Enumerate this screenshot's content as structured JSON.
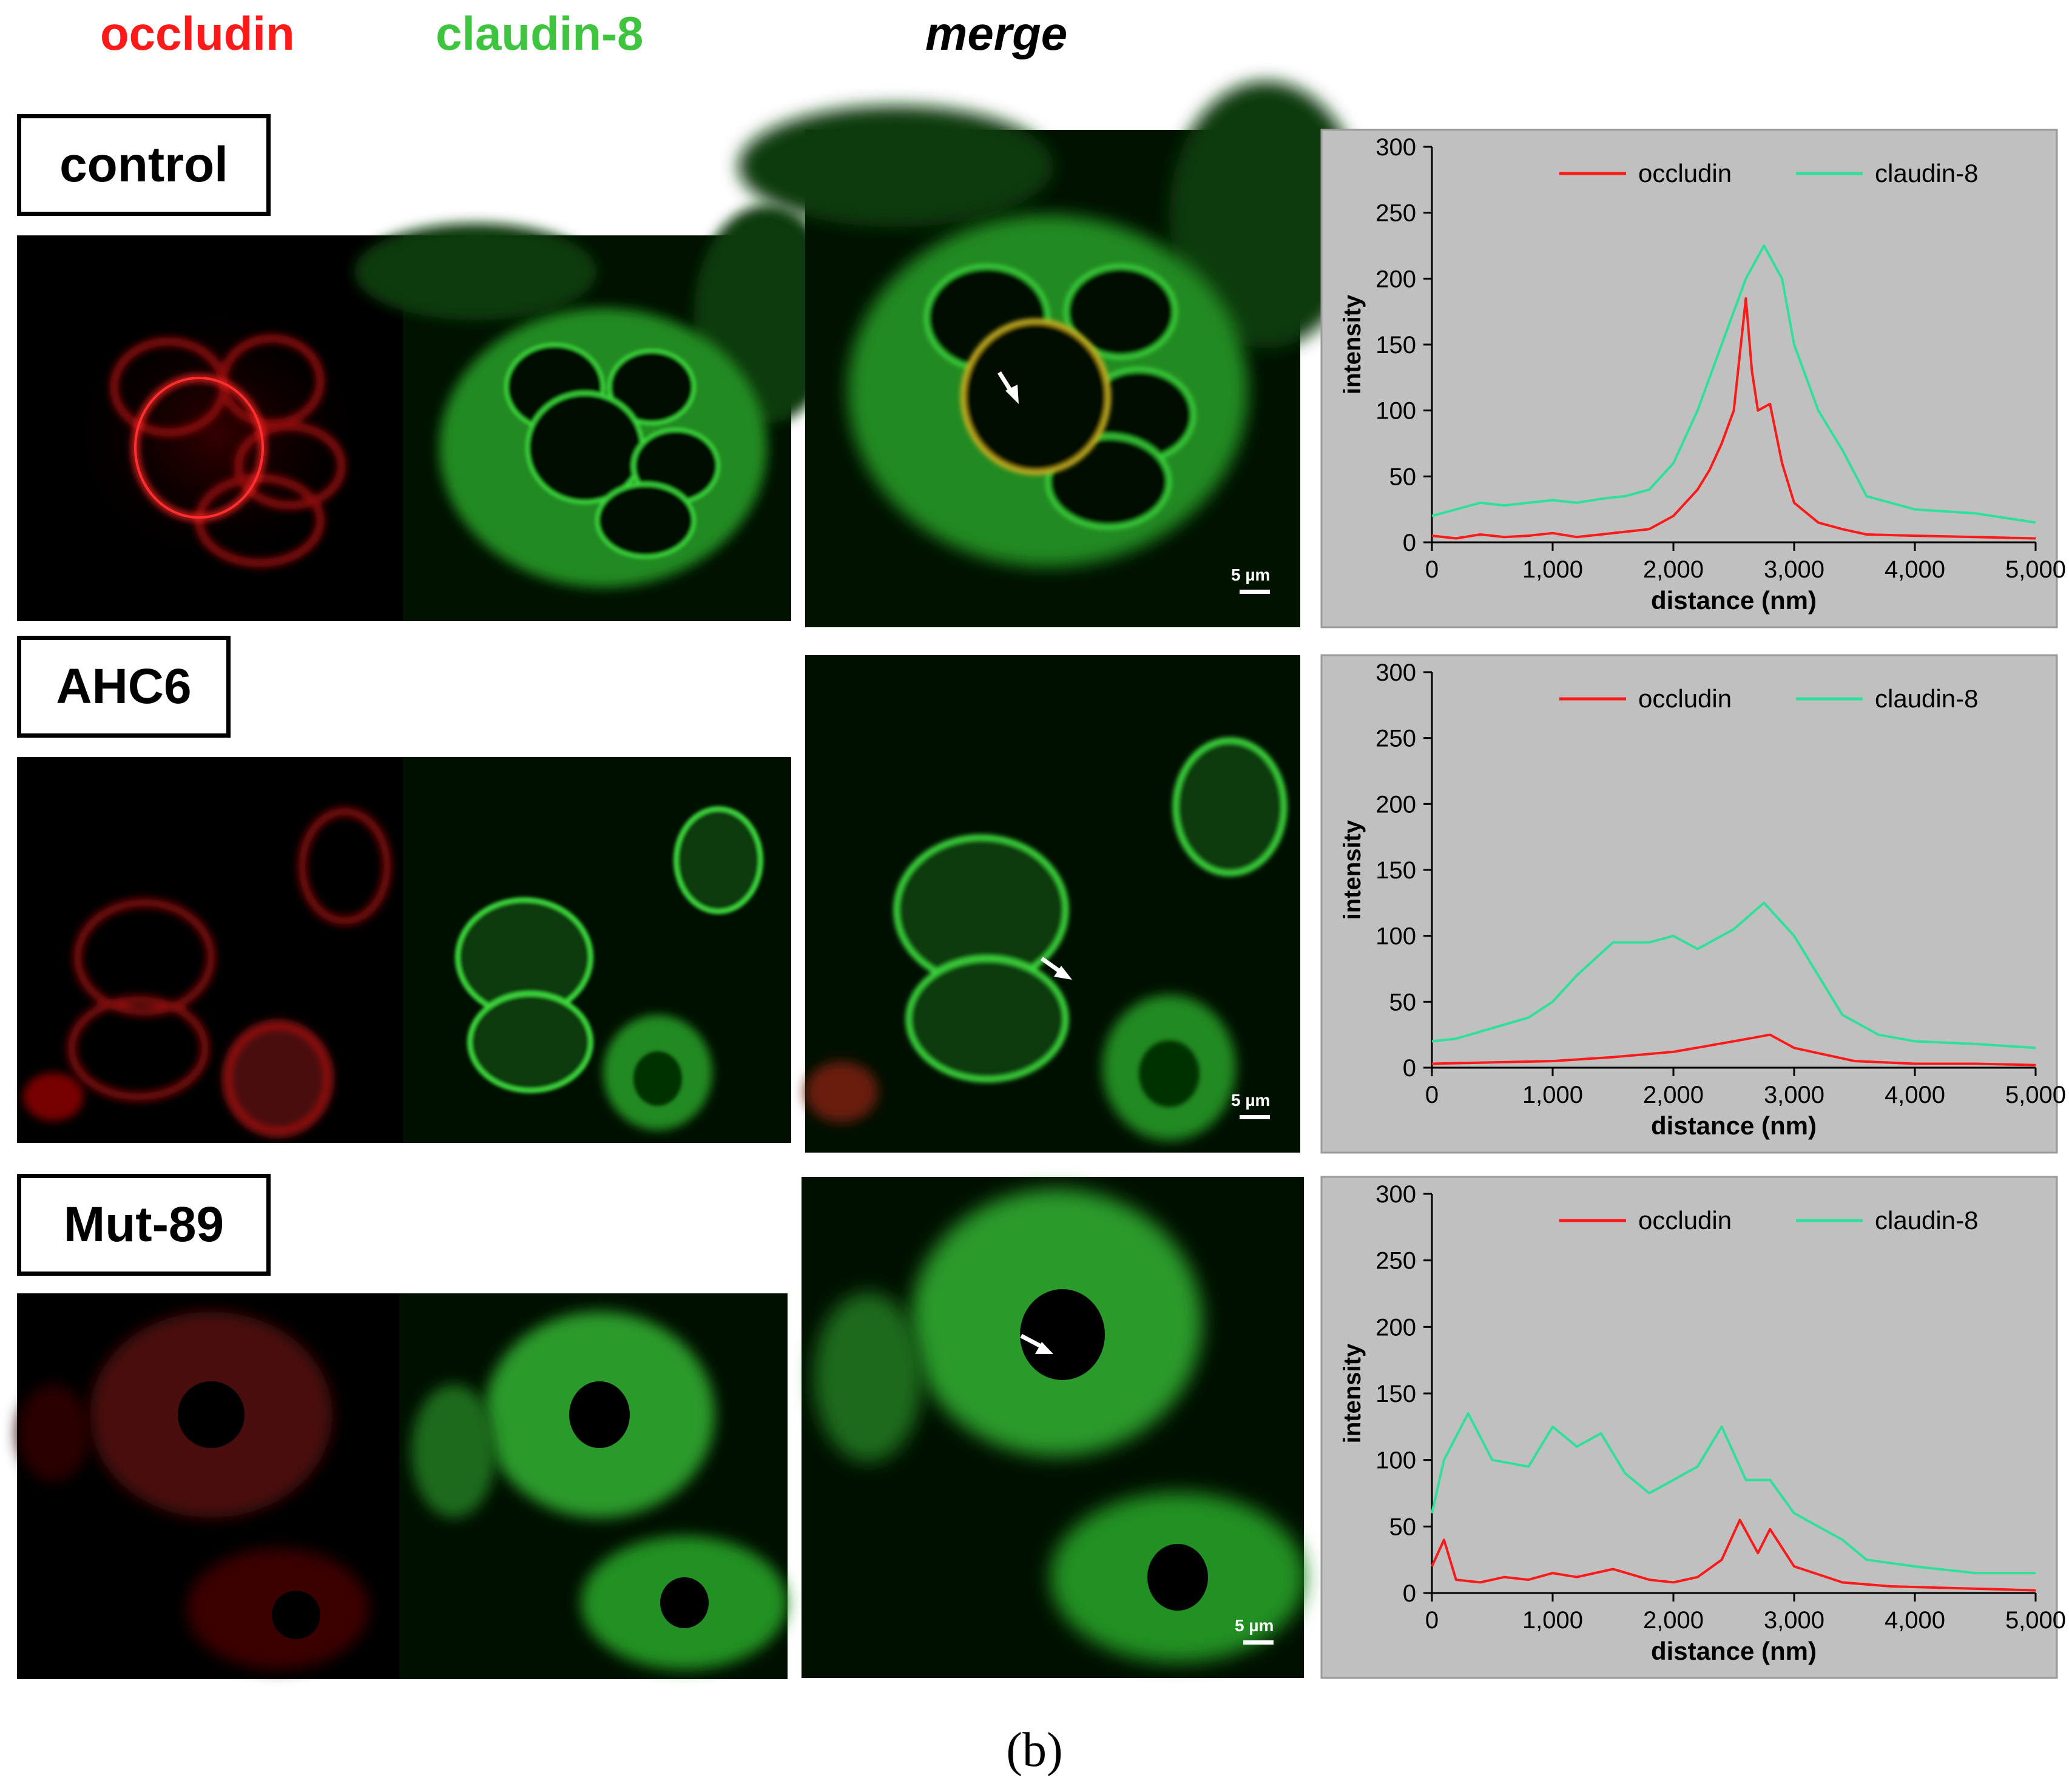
{
  "headers": {
    "occludin": "occludin",
    "claudin": "claudin-8",
    "merge": "merge"
  },
  "rows": [
    {
      "label": "control"
    },
    {
      "label": "AHC6"
    },
    {
      "label": "Mut-89"
    }
  ],
  "scale_bar": "5 µm",
  "caption": "(b)",
  "chart_data": [
    {
      "type": "line",
      "xlabel": "distance (nm)",
      "ylabel": "intensity",
      "xlim": [
        0,
        5000
      ],
      "ylim": [
        0,
        300
      ],
      "xticks": [
        "0",
        "1,000",
        "2,000",
        "3,000",
        "4,000",
        "5,000"
      ],
      "yticks": [
        "0",
        "50",
        "100",
        "150",
        "200",
        "250",
        "300"
      ],
      "legend": "top",
      "grid": false,
      "series": [
        {
          "name": "occludin",
          "color": "#ff1a1a",
          "x": [
            0,
            200,
            400,
            600,
            800,
            1000,
            1200,
            1400,
            1600,
            1800,
            2000,
            2200,
            2300,
            2400,
            2500,
            2600,
            2650,
            2700,
            2800,
            2900,
            3000,
            3200,
            3400,
            3600,
            4000,
            4500,
            5000
          ],
          "y": [
            5,
            3,
            6,
            4,
            5,
            7,
            4,
            6,
            8,
            10,
            20,
            40,
            55,
            75,
            100,
            185,
            130,
            100,
            105,
            60,
            30,
            15,
            10,
            6,
            5,
            4,
            3
          ]
        },
        {
          "name": "claudin-8",
          "color": "#2ee09a",
          "x": [
            0,
            200,
            400,
            600,
            800,
            1000,
            1200,
            1400,
            1600,
            1800,
            2000,
            2200,
            2400,
            2600,
            2750,
            2900,
            3000,
            3200,
            3400,
            3600,
            4000,
            4500,
            5000
          ],
          "y": [
            20,
            25,
            30,
            28,
            30,
            32,
            30,
            33,
            35,
            40,
            60,
            100,
            150,
            200,
            225,
            200,
            150,
            100,
            70,
            35,
            25,
            22,
            15
          ]
        }
      ]
    },
    {
      "type": "line",
      "xlabel": "distance (nm)",
      "ylabel": "intensity",
      "xlim": [
        0,
        5000
      ],
      "ylim": [
        0,
        300
      ],
      "xticks": [
        "0",
        "1,000",
        "2,000",
        "3,000",
        "4,000",
        "5,000"
      ],
      "yticks": [
        "0",
        "50",
        "100",
        "150",
        "200",
        "250",
        "300"
      ],
      "legend": "top",
      "grid": false,
      "series": [
        {
          "name": "occludin",
          "color": "#ff1a1a",
          "x": [
            0,
            500,
            1000,
            1500,
            2000,
            2500,
            2800,
            3000,
            3500,
            4000,
            4500,
            5000
          ],
          "y": [
            3,
            4,
            5,
            8,
            12,
            20,
            25,
            15,
            5,
            3,
            3,
            2
          ]
        },
        {
          "name": "claudin-8",
          "color": "#2ee09a",
          "x": [
            0,
            200,
            500,
            800,
            1000,
            1200,
            1500,
            1800,
            2000,
            2200,
            2500,
            2750,
            3000,
            3200,
            3400,
            3700,
            4000,
            4500,
            5000
          ],
          "y": [
            20,
            22,
            30,
            38,
            50,
            70,
            95,
            95,
            100,
            90,
            105,
            125,
            100,
            70,
            40,
            25,
            20,
            18,
            15
          ]
        }
      ]
    },
    {
      "type": "line",
      "xlabel": "distance (nm)",
      "ylabel": "intensity",
      "xlim": [
        0,
        5000
      ],
      "ylim": [
        0,
        300
      ],
      "xticks": [
        "0",
        "1,000",
        "2,000",
        "3,000",
        "4,000",
        "5,000"
      ],
      "yticks": [
        "0",
        "50",
        "100",
        "150",
        "200",
        "250",
        "300"
      ],
      "legend": "top",
      "grid": false,
      "series": [
        {
          "name": "occludin",
          "color": "#ff1a1a",
          "x": [
            0,
            100,
            200,
            400,
            600,
            800,
            1000,
            1200,
            1500,
            1800,
            2000,
            2200,
            2400,
            2550,
            2700,
            2800,
            3000,
            3400,
            3800,
            4200,
            4600,
            5000
          ],
          "y": [
            20,
            40,
            10,
            8,
            12,
            10,
            15,
            12,
            18,
            10,
            8,
            12,
            25,
            55,
            30,
            48,
            20,
            8,
            5,
            4,
            3,
            2
          ]
        },
        {
          "name": "claudin-8",
          "color": "#2ee09a",
          "x": [
            0,
            100,
            300,
            500,
            800,
            1000,
            1200,
            1400,
            1600,
            1800,
            2000,
            2200,
            2400,
            2600,
            2800,
            3000,
            3200,
            3400,
            3600,
            4000,
            4500,
            5000
          ],
          "y": [
            60,
            100,
            135,
            100,
            95,
            125,
            110,
            120,
            90,
            75,
            85,
            95,
            125,
            85,
            85,
            60,
            50,
            40,
            25,
            20,
            15,
            15
          ]
        }
      ]
    }
  ]
}
